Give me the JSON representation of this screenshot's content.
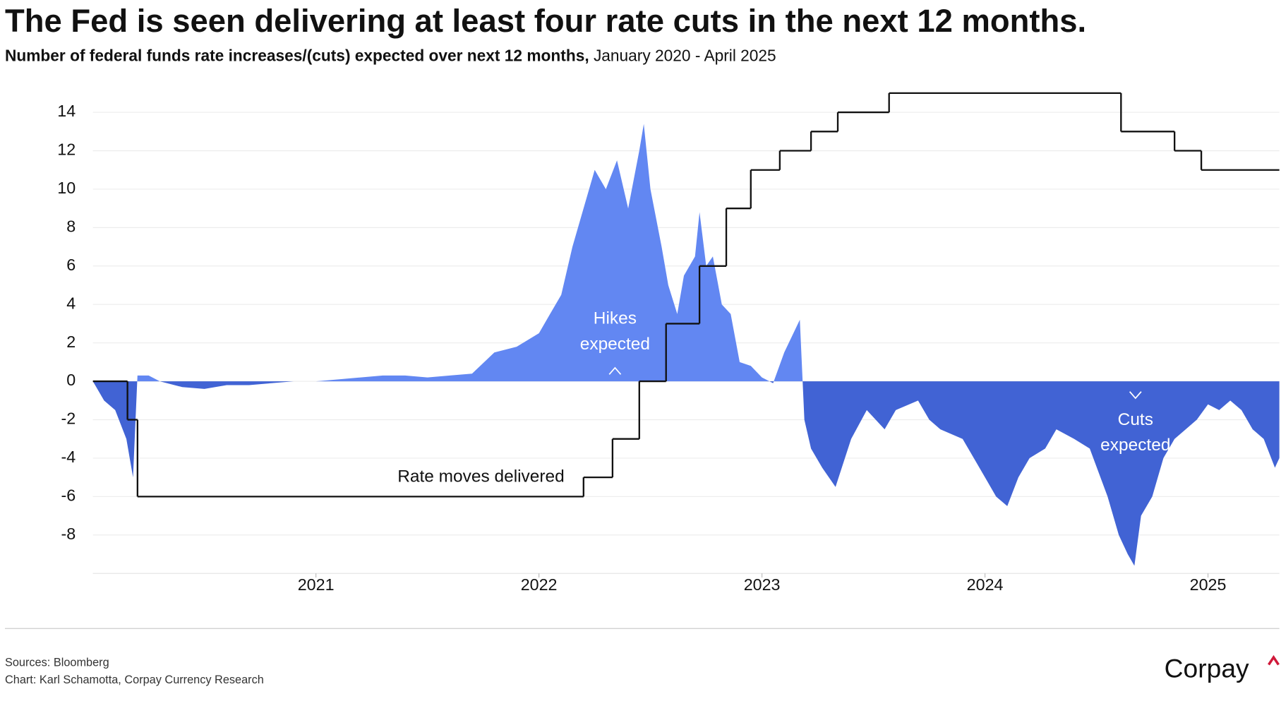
{
  "chart_data": {
    "type": "area-step",
    "title": "The Fed is seen delivering at least four rate cuts in the next 12 months.",
    "subtitle": "Number of federal funds rate increases/(cuts) expected over next 12 months,",
    "date_range": "January 2020 - April 2025",
    "xlim": [
      2020.0,
      2025.32
    ],
    "xticks": [
      2021,
      2022,
      2023,
      2024,
      2025
    ],
    "ylim": [
      -10,
      15
    ],
    "yticks": [
      -8,
      -6,
      -4,
      -2,
      0,
      2,
      4,
      6,
      8,
      10,
      12,
      14
    ],
    "grid": true,
    "series": [
      {
        "kind": "area",
        "color": "#6287f2",
        "negative_color": "#4163d4",
        "x": [
          2020.0,
          2020.05,
          2020.1,
          2020.15,
          2020.18,
          2020.2,
          2020.25,
          2020.3,
          2020.4,
          2020.5,
          2020.6,
          2020.7,
          2020.8,
          2020.9,
          2021.0,
          2021.1,
          2021.2,
          2021.3,
          2021.4,
          2021.5,
          2021.6,
          2021.7,
          2021.8,
          2021.9,
          2022.0,
          2022.05,
          2022.1,
          2022.15,
          2022.2,
          2022.25,
          2022.3,
          2022.35,
          2022.4,
          2022.45,
          2022.47,
          2022.5,
          2022.55,
          2022.58,
          2022.62,
          2022.65,
          2022.7,
          2022.72,
          2022.75,
          2022.78,
          2022.82,
          2022.86,
          2022.9,
          2022.95,
          2023.0,
          2023.05,
          2023.1,
          2023.17,
          2023.19,
          2023.22,
          2023.27,
          2023.33,
          2023.4,
          2023.47,
          2023.55,
          2023.6,
          2023.7,
          2023.75,
          2023.8,
          2023.9,
          2023.95,
          2024.0,
          2024.05,
          2024.1,
          2024.15,
          2024.2,
          2024.27,
          2024.32,
          2024.4,
          2024.47,
          2024.55,
          2024.6,
          2024.64,
          2024.67,
          2024.7,
          2024.75,
          2024.8,
          2024.85,
          2024.9,
          2024.95,
          2025.0,
          2025.05,
          2025.1,
          2025.15,
          2025.2,
          2025.25,
          2025.3,
          2025.32
        ],
        "values": [
          0,
          -1,
          -1.5,
          -3,
          -5,
          0.3,
          0.3,
          0,
          -0.3,
          -0.4,
          -0.2,
          -0.2,
          -0.1,
          0,
          0,
          0.1,
          0.2,
          0.3,
          0.3,
          0.2,
          0.3,
          0.4,
          1.5,
          1.8,
          2.5,
          3.5,
          4.5,
          7,
          9,
          11,
          10,
          11.5,
          9,
          12,
          13.4,
          10,
          7,
          5,
          3.5,
          5.5,
          6.5,
          8.8,
          6,
          6.5,
          4,
          3.5,
          1,
          0.8,
          0.2,
          -0.1,
          1.5,
          3.2,
          -2,
          -3.5,
          -4.5,
          -5.5,
          -3,
          -1.5,
          -2.5,
          -1.5,
          -1,
          -2,
          -2.5,
          -3,
          -4,
          -5,
          -6,
          -6.5,
          -5,
          -4,
          -3.5,
          -2.5,
          -3,
          -3.5,
          -6,
          -8,
          -9,
          -9.6,
          -7,
          -6,
          -4,
          -3,
          -2.5,
          -2,
          -1.2,
          -1.5,
          -1,
          -1.5,
          -2.5,
          -3,
          -4.5,
          -4
        ]
      },
      {
        "kind": "step",
        "color": "#111111",
        "x": [
          2020.0,
          2020.155,
          2020.2,
          2022.2,
          2022.33,
          2022.45,
          2022.57,
          2022.72,
          2022.84,
          2022.95,
          2023.08,
          2023.22,
          2023.34,
          2023.57,
          2024.61,
          2024.85,
          2024.97,
          2025.32
        ],
        "values": [
          0,
          -2,
          -6,
          -5,
          -3,
          0,
          3,
          6,
          9,
          11,
          12,
          13,
          14,
          15,
          13,
          12,
          11,
          11
        ]
      }
    ],
    "annotations": [
      {
        "lines": [
          "Hikes",
          "expected"
        ]
      },
      {
        "lines": [
          "Cuts",
          "expected"
        ]
      },
      {
        "lines": [
          "Rate moves delivered"
        ]
      }
    ],
    "sources": "Sources: Bloomberg",
    "credit": "Chart: Karl Schamotta, Corpay Currency Research",
    "logo": "Corpay"
  }
}
